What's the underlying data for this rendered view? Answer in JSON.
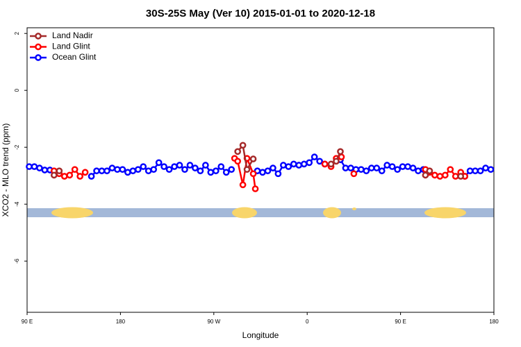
{
  "chart_data": {
    "type": "line",
    "title": "30S-25S May (Ver 10)   2015-01-01 to 2020-12-18",
    "xlabel": "Longitude",
    "ylabel": "XCO2 - MLO trend (ppm)",
    "xlim": [
      90,
      540
    ],
    "xticks": [
      {
        "value": 90,
        "label": "90 E"
      },
      {
        "value": 180,
        "label": "180"
      },
      {
        "value": 270,
        "label": "90 W"
      },
      {
        "value": 360,
        "label": "0"
      },
      {
        "value": 450,
        "label": "90 E"
      },
      {
        "value": 540,
        "label": "180"
      }
    ],
    "ylim": [
      -7.8,
      2.2
    ],
    "yticks": [
      2,
      0,
      -2,
      -4,
      -6
    ],
    "legend": "top-left",
    "series": [
      {
        "name": "Land Nadir",
        "color": "#a52a2a",
        "x": [
          116,
          121,
          null,
          293,
          298,
          302,
          308,
          null,
          383,
          388,
          392,
          null,
          474,
          478,
          null,
          508
        ],
        "values": [
          -2.98,
          -2.83,
          null,
          -2.15,
          -1.93,
          -2.78,
          -2.41,
          null,
          -2.59,
          -2.49,
          -2.15,
          null,
          -2.98,
          -2.83,
          null,
          -3.02
        ]
      },
      {
        "name": "Land Glint",
        "color": "#ff0000",
        "x": [
          116,
          121,
          126,
          131,
          136,
          141,
          146,
          null,
          290,
          293,
          298,
          302,
          308,
          310,
          null,
          377,
          383,
          388,
          393,
          null,
          405,
          null,
          474,
          478,
          483,
          488,
          493,
          498,
          503,
          508,
          512
        ],
        "values": [
          -2.83,
          -2.93,
          -3.02,
          -2.98,
          -2.78,
          -3.02,
          -2.88,
          null,
          -2.39,
          -2.49,
          -3.32,
          -2.39,
          -2.93,
          -3.46,
          null,
          -2.59,
          -2.68,
          -2.39,
          -2.34,
          null,
          -2.93,
          null,
          -2.78,
          -2.88,
          -2.98,
          -3.02,
          -2.98,
          -2.78,
          -3.02,
          -2.88,
          -3.02
        ]
      },
      {
        "name": "Ocean Glint",
        "color": "#0000ff",
        "x": [
          92,
          97,
          102,
          107,
          112,
          null,
          152,
          157,
          162,
          167,
          172,
          177,
          182,
          187,
          192,
          197,
          202,
          207,
          212,
          217,
          222,
          227,
          232,
          237,
          242,
          247,
          252,
          257,
          262,
          267,
          272,
          277,
          282,
          287,
          null,
          312,
          317,
          322,
          327,
          332,
          337,
          342,
          347,
          352,
          357,
          362,
          367,
          372,
          377,
          null,
          392,
          397,
          402,
          407,
          412,
          417,
          422,
          427,
          432,
          437,
          442,
          447,
          452,
          457,
          462,
          467,
          472,
          null,
          512,
          517,
          522,
          527,
          532,
          537
        ],
        "values": [
          -2.68,
          -2.68,
          -2.73,
          -2.8,
          -2.8,
          null,
          -3.02,
          -2.83,
          -2.83,
          -2.83,
          -2.73,
          -2.78,
          -2.78,
          -2.88,
          -2.83,
          -2.78,
          -2.68,
          -2.83,
          -2.78,
          -2.54,
          -2.68,
          -2.78,
          -2.68,
          -2.63,
          -2.78,
          -2.63,
          -2.73,
          -2.83,
          -2.63,
          -2.88,
          -2.83,
          -2.68,
          -2.88,
          -2.78,
          null,
          -2.83,
          -2.88,
          -2.83,
          -2.73,
          -2.93,
          -2.63,
          -2.68,
          -2.59,
          -2.63,
          -2.59,
          -2.54,
          -2.34,
          -2.49,
          -2.59,
          null,
          -2.44,
          -2.73,
          -2.73,
          -2.78,
          -2.78,
          -2.83,
          -2.73,
          -2.73,
          -2.83,
          -2.63,
          -2.68,
          -2.78,
          -2.68,
          -2.68,
          -2.73,
          -2.83,
          -2.78,
          null,
          -3.02,
          -2.83,
          -2.83,
          -2.83,
          -2.73,
          -2.78
        ]
      }
    ]
  }
}
